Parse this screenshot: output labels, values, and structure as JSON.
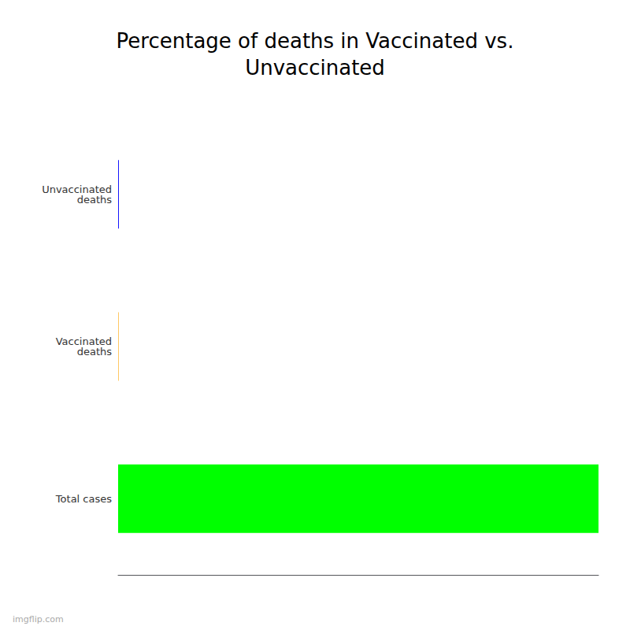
{
  "chart_data": {
    "type": "bar",
    "orientation": "horizontal",
    "title": "Percentage of deaths in Vaccinated vs.\nUnvaccinated",
    "categories": [
      "Unvaccinated\ndeaths",
      "Vaccinated\ndeaths",
      "Total cases"
    ],
    "values": [
      0.15,
      0.1,
      100
    ],
    "colors": [
      "#0000ff",
      "#ffa500",
      "#00ff00"
    ],
    "xlim": [
      0,
      100
    ],
    "grid": false,
    "tick_labels": "y",
    "annotations": [
      "imgflip.com"
    ]
  }
}
